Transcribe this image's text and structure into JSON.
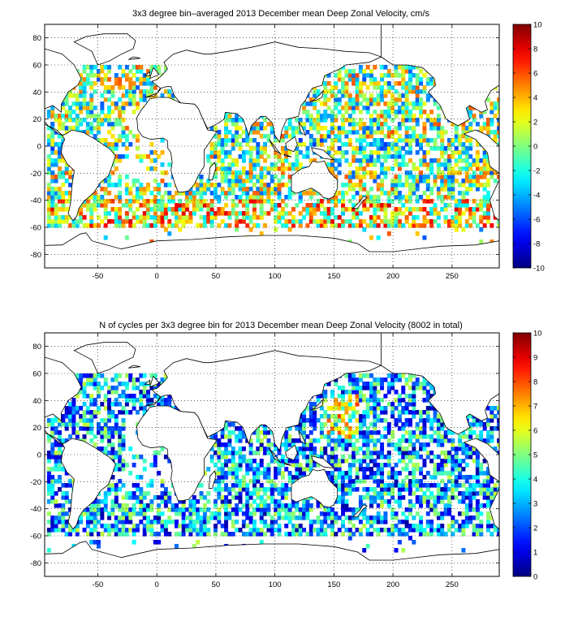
{
  "figures": [
    {
      "title": "3x3 degree bin–averaged 2013 December mean Deep Zonal Velocity, cm/s",
      "xticks": [
        -50,
        0,
        50,
        100,
        150,
        200,
        250
      ],
      "yticks": [
        80,
        60,
        40,
        20,
        0,
        -20,
        -40,
        -60,
        -80
      ],
      "xlim": [
        -95,
        290
      ],
      "ylim": [
        -90,
        90
      ],
      "colorbar": {
        "min": -10,
        "max": 10,
        "ticks": [
          10,
          8,
          6,
          4,
          2,
          0,
          -2,
          -4,
          -6,
          -8,
          -10
        ],
        "colormap": "jet"
      }
    },
    {
      "title": "N of cycles per 3x3 degree bin for 2013 December mean Deep Zonal Velocity (8002 in total)",
      "xticks": [
        -50,
        0,
        50,
        100,
        150,
        200,
        250
      ],
      "yticks": [
        80,
        60,
        40,
        20,
        0,
        -20,
        -40,
        -60,
        -80
      ],
      "xlim": [
        -95,
        290
      ],
      "ylim": [
        -90,
        90
      ],
      "colorbar": {
        "min": 0,
        "max": 10,
        "ticks": [
          10,
          9,
          8,
          7,
          6,
          5,
          4,
          3,
          2,
          1,
          0
        ],
        "colormap": "jet"
      }
    }
  ],
  "chart_data": [
    {
      "type": "heatmap",
      "title": "3x3 degree bin–averaged 2013 December mean Deep Zonal Velocity, cm/s",
      "units": "cm/s",
      "bin_size_deg": 3,
      "xlim": [
        -95,
        290
      ],
      "ylim": [
        -90,
        90
      ],
      "clim": [
        -10,
        10
      ],
      "grid": true
    },
    {
      "type": "heatmap",
      "title": "N of cycles per 3x3 degree bin for 2013 December mean Deep Zonal Velocity (8002 in total)",
      "total_cycles": 8002,
      "bin_size_deg": 3,
      "xlim": [
        -95,
        290
      ],
      "ylim": [
        -90,
        90
      ],
      "clim": [
        0,
        10
      ],
      "grid": true
    }
  ]
}
